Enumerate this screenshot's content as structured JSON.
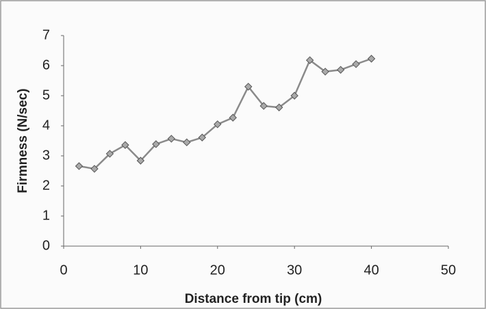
{
  "chart_data": {
    "type": "line",
    "x_label": "Distance from tip (cm)",
    "y_label": "Firmness (N/sec)",
    "x": [
      2,
      4,
      6,
      8,
      10,
      12,
      14,
      16,
      18,
      20,
      22,
      24,
      26,
      28,
      30,
      32,
      34,
      36,
      38,
      40
    ],
    "series": [
      {
        "color": "#8a8a8a",
        "values": [
          2.66,
          2.57,
          3.07,
          3.36,
          2.84,
          3.39,
          3.57,
          3.45,
          3.61,
          4.05,
          4.27,
          5.3,
          4.66,
          4.61,
          5.0,
          6.18,
          5.8,
          5.86,
          6.05,
          6.23
        ]
      }
    ],
    "xlim": [
      0,
      50
    ],
    "xticks": [
      0,
      10,
      20,
      30,
      40,
      50
    ],
    "ylim": [
      0,
      7
    ],
    "yticks": [
      0,
      1,
      2,
      3,
      4,
      5,
      6,
      7
    ],
    "grid": false
  }
}
